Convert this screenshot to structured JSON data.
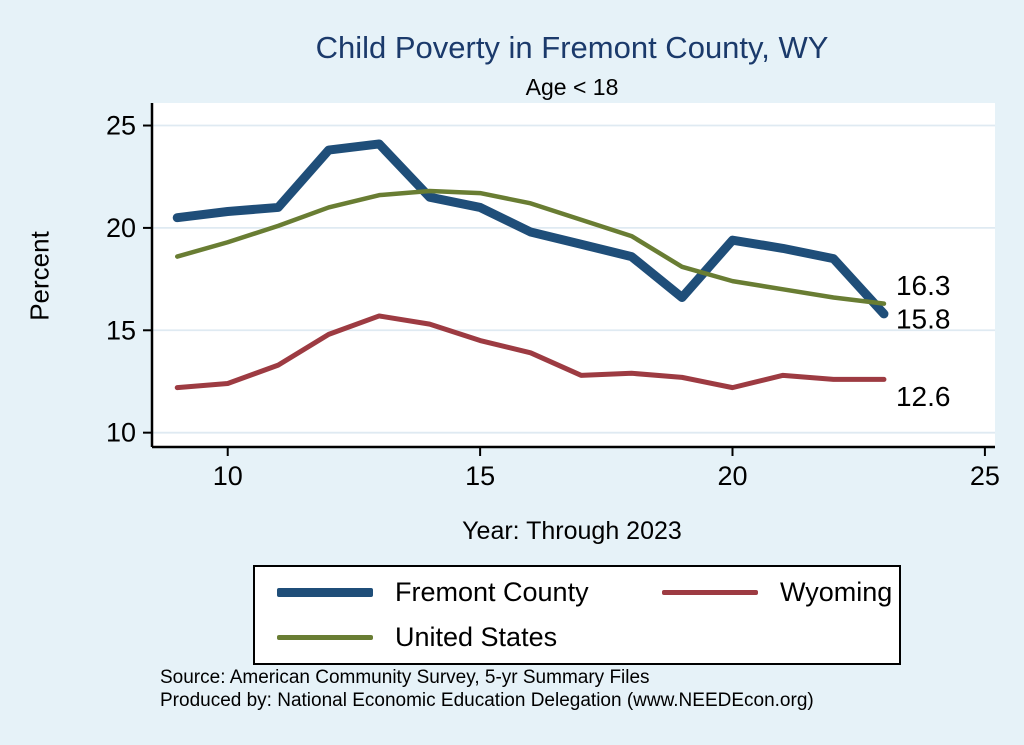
{
  "page": {
    "title": "Child Poverty in Fremont County, WY",
    "subtitle": "Age < 18",
    "xlabel": "Year: Through 2023",
    "ylabel": "Percent",
    "source_line1": "Source: American Community Survey, 5-yr Summary Files",
    "source_line2": "Produced by: National Economic Education Delegation (www.NEEDEcon.org)"
  },
  "colors": {
    "background": "#e6f2f8",
    "plot_bg": "#ffffff",
    "grid": "#dfeaf2",
    "title_color": "#1b3a6b",
    "axis": "#000000",
    "fremont": "#1f4e79",
    "wyoming": "#9d3b42",
    "us": "#697d33"
  },
  "chart_data": {
    "type": "line",
    "title": "Child Poverty in Fremont County, WY",
    "subtitle": "Age < 18",
    "xlabel": "Year: Through 2023",
    "ylabel": "Percent",
    "grid": true,
    "legend_position": "bottom",
    "xlim": [
      8.5,
      25.2
    ],
    "ylim": [
      9.3,
      26.1
    ],
    "x_ticks": [
      10,
      15,
      20,
      25
    ],
    "y_ticks": [
      10,
      15,
      20,
      25
    ],
    "x": [
      9,
      10,
      11,
      12,
      13,
      14,
      15,
      16,
      17,
      18,
      19,
      20,
      21,
      22,
      23
    ],
    "series": [
      {
        "name": "Fremont County",
        "color_key": "fremont",
        "stroke_width": 9,
        "values": [
          20.5,
          20.8,
          21.0,
          23.8,
          24.1,
          21.5,
          21.0,
          19.8,
          19.2,
          18.6,
          16.6,
          19.4,
          19.0,
          18.5,
          15.8
        ]
      },
      {
        "name": "Wyoming",
        "color_key": "wyoming",
        "stroke_width": 5,
        "values": [
          12.2,
          12.4,
          13.3,
          14.8,
          15.7,
          15.3,
          14.5,
          13.9,
          12.8,
          12.9,
          12.7,
          12.2,
          12.8,
          12.6,
          12.6
        ]
      },
      {
        "name": "United States",
        "color_key": "us",
        "stroke_width": 4.5,
        "values": [
          18.6,
          19.3,
          20.1,
          21.0,
          21.6,
          21.8,
          21.7,
          21.2,
          20.4,
          19.6,
          18.1,
          17.4,
          17.0,
          16.6,
          16.3
        ]
      }
    ],
    "end_labels": [
      {
        "text": "16.3",
        "value": 16.3,
        "series": "United States"
      },
      {
        "text": "15.8",
        "value": 15.8,
        "series": "Fremont County"
      },
      {
        "text": "12.6",
        "value": 12.6,
        "series": "Wyoming"
      }
    ]
  },
  "legend": {
    "entries": [
      {
        "label": "Fremont County",
        "color_key": "fremont",
        "line_height": 9
      },
      {
        "label": "Wyoming",
        "color_key": "wyoming",
        "line_height": 5
      },
      {
        "label": "United States",
        "color_key": "us",
        "line_height": 5
      }
    ]
  }
}
